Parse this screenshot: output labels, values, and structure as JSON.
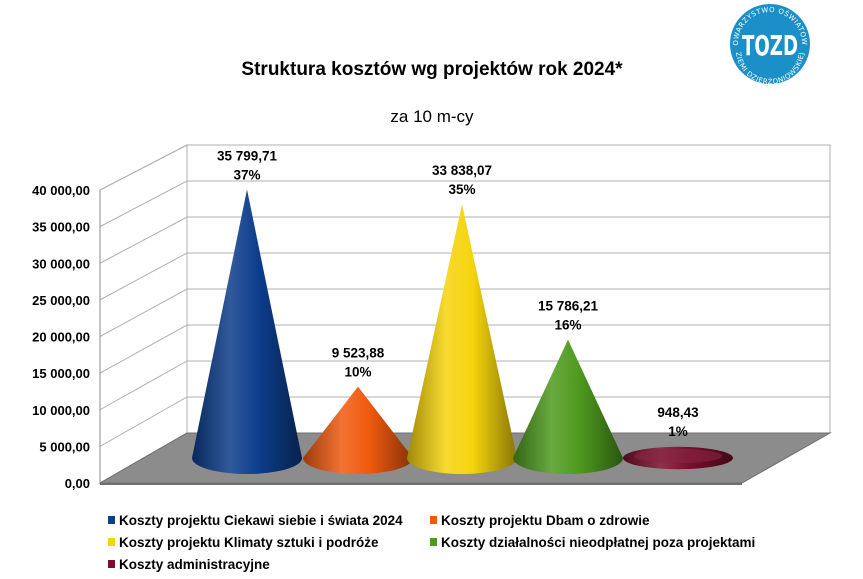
{
  "logo": {
    "text_top": "TOWARZYSTWO OŚWIATOWE",
    "text_bottom": "ZIEMI DZIERŻONIOWSKIEJ",
    "initials": "TOZD",
    "color": "#1a8fc8"
  },
  "chart_data": {
    "type": "bar",
    "shape": "cone-3d",
    "title": "Struktura kosztów wg projektów rok 2024*",
    "subtitle": "za 10 m-cy",
    "ylim": [
      0,
      40000
    ],
    "yticks": [
      0,
      5000,
      10000,
      15000,
      20000,
      25000,
      30000,
      35000,
      40000
    ],
    "ytick_labels": [
      "0,00",
      "5 000,00",
      "10 000,00",
      "15 000,00",
      "20 000,00",
      "25 000,00",
      "30 000,00",
      "35 000,00",
      "40 000,00"
    ],
    "grid": true,
    "legend_position": "bottom",
    "series": [
      {
        "name": "Koszty projektu Ciekawi siebie i świata 2024",
        "value": 35799.71,
        "value_label": "35 799,71",
        "percent_label": "37%",
        "color": "#0d3d8c"
      },
      {
        "name": "Koszty projektu Dbam o zdrowie",
        "value": 9523.88,
        "value_label": "9 523,88",
        "percent_label": "10%",
        "color": "#f05a0f"
      },
      {
        "name": "Koszty projektu Klimaty sztuki i podróże",
        "value": 33838.07,
        "value_label": "33 838,07",
        "percent_label": "35%",
        "color": "#f5d40c"
      },
      {
        "name": "Koszty działalności nieodpłatnej poza projektami",
        "value": 15786.21,
        "value_label": "15 786,21",
        "percent_label": "16%",
        "color": "#4f9a1e"
      },
      {
        "name": "Koszty administracyjne",
        "value": 948.43,
        "value_label": "948,43",
        "percent_label": "1%",
        "color": "#7a0e2c"
      }
    ]
  }
}
